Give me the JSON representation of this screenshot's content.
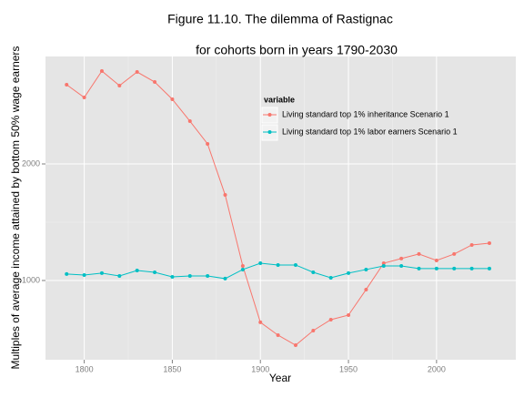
{
  "chart_data": {
    "type": "line",
    "title": "Figure 11.10. The dilemma of Rastignac",
    "subtitle": "for cohorts born in years 1790-2030",
    "x_label": "Year",
    "y_label": "Multiples of average income attained by bottom 50% wage earners",
    "x": [
      1790,
      1800,
      1810,
      1820,
      1830,
      1840,
      1850,
      1860,
      1870,
      1880,
      1890,
      1900,
      1910,
      1920,
      1930,
      1940,
      1950,
      1960,
      1970,
      1980,
      1990,
      2000,
      2010,
      2020,
      2030
    ],
    "series": [
      {
        "name": "Living standard top 1% inheritance Scenario 1",
        "color": "#f8766d",
        "values": [
          2680,
          2570,
          2797,
          2672,
          2789,
          2703,
          2555,
          2367,
          2172,
          1734,
          1125,
          641,
          531,
          445,
          570,
          664,
          703,
          922,
          1148,
          1188,
          1227,
          1172,
          1227,
          1305,
          1320
        ]
      },
      {
        "name": "Living standard top 1% labor earners Scenario 1",
        "color": "#00bfc4",
        "values": [
          1055,
          1047,
          1063,
          1039,
          1086,
          1070,
          1031,
          1039,
          1039,
          1016,
          1094,
          1148,
          1133,
          1133,
          1070,
          1023,
          1063,
          1094,
          1125,
          1125,
          1102,
          1102,
          1102,
          1102,
          1102
        ]
      }
    ],
    "legend_title": "variable",
    "legend_position": "top-right",
    "xlim": [
      1778,
      2045
    ],
    "xticks": [
      1800,
      1850,
      1900,
      1950,
      2000
    ],
    "ylim": [
      320,
      2922
    ],
    "yticks": [
      1000,
      2000
    ],
    "grid": true
  }
}
